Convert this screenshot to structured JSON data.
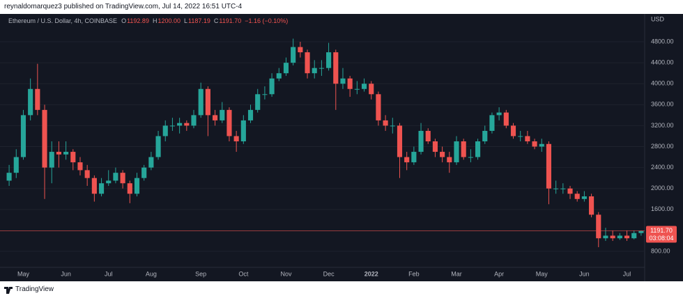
{
  "header": {
    "byline": "reynaldomarquez3 published on TradingView.com, Jul 14, 2022 16:51 UTC-4",
    "symbol": "Ethereum / U.S. Dollar, 4h, COINBASE",
    "o_key": "O",
    "o_val": "1192.89",
    "h_key": "H",
    "h_val": "1200.00",
    "l_key": "L",
    "l_val": "1187.19",
    "c_key": "C",
    "c_val": "1191.70",
    "change": "−1.16 (−0.10%)"
  },
  "footer": {
    "brand": "TradingView"
  },
  "chart_data": {
    "type": "candlestick",
    "y_axis_title": "USD",
    "categories": [
      null,
      null,
      "May",
      null,
      null,
      null,
      null,
      null,
      "Jun",
      null,
      null,
      null,
      null,
      null,
      "Jul",
      null,
      null,
      null,
      null,
      null,
      "Aug",
      null,
      null,
      null,
      null,
      null,
      null,
      "Sep",
      null,
      null,
      null,
      null,
      null,
      "Oct",
      null,
      null,
      null,
      null,
      null,
      "Nov",
      null,
      null,
      null,
      null,
      null,
      "Dec",
      null,
      null,
      null,
      null,
      null,
      "2022",
      null,
      null,
      null,
      null,
      null,
      "Feb",
      null,
      null,
      null,
      null,
      null,
      "Mar",
      null,
      null,
      null,
      null,
      null,
      "Apr",
      null,
      null,
      null,
      null,
      null,
      "May",
      null,
      null,
      null,
      null,
      null,
      "Jun",
      null,
      null,
      null,
      null,
      null,
      "Jul",
      null,
      null
    ],
    "open": [
      2150,
      2300,
      2600,
      3400,
      3900,
      3500,
      2400,
      2700,
      2650,
      2700,
      2500,
      2350,
      2200,
      1900,
      2100,
      2150,
      2300,
      2100,
      1900,
      2200,
      2400,
      2600,
      3000,
      3200,
      3200,
      3250,
      3200,
      3400,
      3900,
      3400,
      3300,
      3500,
      3000,
      2900,
      3300,
      3500,
      3800,
      3800,
      4100,
      4200,
      4400,
      4700,
      4600,
      4200,
      4300,
      4300,
      4600,
      4000,
      4100,
      3900,
      3900,
      4000,
      3800,
      3300,
      3200,
      3200,
      2600,
      2500,
      2700,
      3100,
      2900,
      2700,
      2600,
      2500,
      2900,
      2600,
      2600,
      2900,
      3100,
      3400,
      3450,
      3200,
      3000,
      3000,
      2900,
      2800,
      2850,
      2000,
      2000,
      2000,
      1900,
      1800,
      1850,
      1500,
      1050,
      1100,
      1050,
      1100,
      1050,
      1150
    ],
    "high": [
      2450,
      2750,
      3500,
      4100,
      4380,
      3600,
      2900,
      2900,
      2900,
      2750,
      2600,
      2450,
      2250,
      2200,
      2350,
      2400,
      2350,
      2150,
      2300,
      2450,
      2700,
      3100,
      3300,
      3350,
      3350,
      3300,
      3500,
      4020,
      3950,
      3500,
      3650,
      3550,
      3100,
      3400,
      3600,
      3900,
      3950,
      4200,
      4300,
      4500,
      4860,
      4800,
      4650,
      4450,
      4450,
      4780,
      4650,
      4300,
      4150,
      4050,
      4100,
      4050,
      3850,
      3400,
      3350,
      3250,
      2700,
      2800,
      3250,
      3150,
      2950,
      2800,
      2700,
      3000,
      2950,
      2750,
      2950,
      3200,
      3450,
      3550,
      3500,
      3250,
      3100,
      3100,
      2950,
      2950,
      2900,
      2150,
      2100,
      2050,
      1950,
      1950,
      1900,
      1550,
      1250,
      1200,
      1150,
      1200,
      1200,
      1200
    ],
    "low": [
      2050,
      2200,
      2550,
      3300,
      3400,
      1800,
      2100,
      2400,
      2550,
      2350,
      2250,
      2050,
      1750,
      1850,
      2050,
      2100,
      2000,
      1720,
      1850,
      2150,
      2350,
      2550,
      2900,
      3100,
      3050,
      3100,
      3150,
      3350,
      3000,
      3200,
      3250,
      2900,
      2700,
      2850,
      3250,
      3450,
      3700,
      3750,
      4050,
      4150,
      4350,
      4500,
      4100,
      4100,
      4150,
      4250,
      3500,
      3900,
      3750,
      3800,
      3850,
      3700,
      3200,
      3100,
      3050,
      2200,
      2350,
      2450,
      2650,
      2850,
      2600,
      2500,
      2300,
      2450,
      2550,
      2500,
      2550,
      2850,
      3050,
      3300,
      3150,
      2950,
      2900,
      2850,
      2750,
      2700,
      1700,
      1900,
      1900,
      1800,
      1750,
      1750,
      1450,
      880,
      1000,
      1000,
      1020,
      1000,
      1030,
      1100
    ],
    "close": [
      2300,
      2600,
      3400,
      3900,
      3500,
      2400,
      2700,
      2650,
      2700,
      2500,
      2350,
      2200,
      1900,
      2100,
      2150,
      2300,
      2100,
      1900,
      2200,
      2400,
      2600,
      3000,
      3200,
      3200,
      3250,
      3200,
      3400,
      3900,
      3400,
      3300,
      3500,
      3000,
      2900,
      3300,
      3500,
      3800,
      3800,
      4100,
      4200,
      4400,
      4700,
      4600,
      4200,
      4300,
      4300,
      4600,
      4000,
      4100,
      3900,
      3900,
      4000,
      3800,
      3300,
      3200,
      3200,
      2600,
      2500,
      2700,
      3100,
      2900,
      2700,
      2600,
      2500,
      2900,
      2600,
      2600,
      2900,
      3100,
      3400,
      3450,
      3200,
      3000,
      3000,
      2900,
      2800,
      2850,
      2000,
      2000,
      2000,
      1900,
      1800,
      1850,
      1500,
      1050,
      1100,
      1050,
      1100,
      1050,
      1150,
      1191.7
    ],
    "up_color": "#26a69a",
    "down_color": "#ef5350",
    "ylim": [
      548,
      5332
    ],
    "yticks": [
      {
        "value": 800,
        "label": "800.00"
      },
      {
        "value": 1600,
        "label": "1600.00"
      },
      {
        "value": 2000,
        "label": "2000.00"
      },
      {
        "value": 2400,
        "label": "2400.00"
      },
      {
        "value": 2800,
        "label": "2800.00"
      },
      {
        "value": 3200,
        "label": "3200.00"
      },
      {
        "value": 3600,
        "label": "3600.00"
      },
      {
        "value": 4000,
        "label": "4000.00"
      },
      {
        "value": 4400,
        "label": "4400.00"
      },
      {
        "value": 4800,
        "label": "4800.00"
      }
    ],
    "grid": true,
    "price_line": {
      "value": 1191.7,
      "label": "1191.70"
    },
    "countdown": "03:08:04"
  }
}
